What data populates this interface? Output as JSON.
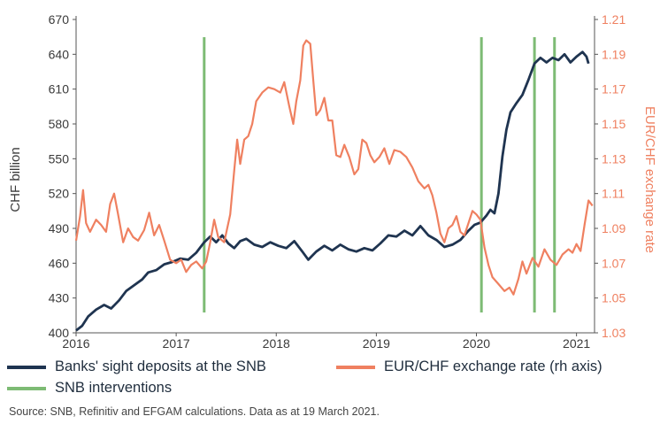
{
  "chart_data": {
    "type": "line",
    "x_ticks": [
      "2016",
      "2017",
      "2018",
      "2019",
      "2020",
      "2021"
    ],
    "left_axis": {
      "label": "CHF billion",
      "ticks": [
        400,
        430,
        460,
        490,
        520,
        550,
        580,
        610,
        640,
        670
      ],
      "ylim": [
        400,
        670
      ]
    },
    "right_axis": {
      "label": "EUR/CHF exchange rate",
      "ticks": [
        "1.03",
        "1.05",
        "1.07",
        "1.09",
        "1.11",
        "1.13",
        "1.15",
        "1.17",
        "1.19",
        "1.21"
      ],
      "ylim": [
        1.03,
        1.21
      ]
    },
    "series": [
      {
        "name": "Banks' sight deposits at the SNB",
        "axis": "left",
        "color": "#1f3450",
        "points": [
          [
            2016.0,
            402
          ],
          [
            2016.06,
            406
          ],
          [
            2016.12,
            414
          ],
          [
            2016.2,
            420
          ],
          [
            2016.28,
            424
          ],
          [
            2016.35,
            421
          ],
          [
            2016.43,
            428
          ],
          [
            2016.5,
            436
          ],
          [
            2016.58,
            441
          ],
          [
            2016.66,
            446
          ],
          [
            2016.72,
            452
          ],
          [
            2016.8,
            454
          ],
          [
            2016.88,
            459
          ],
          [
            2016.96,
            461
          ],
          [
            2017.04,
            464
          ],
          [
            2017.12,
            463
          ],
          [
            2017.2,
            469
          ],
          [
            2017.28,
            478
          ],
          [
            2017.34,
            483
          ],
          [
            2017.4,
            478
          ],
          [
            2017.46,
            484
          ],
          [
            2017.52,
            477
          ],
          [
            2017.58,
            473
          ],
          [
            2017.64,
            479
          ],
          [
            2017.7,
            481
          ],
          [
            2017.78,
            476
          ],
          [
            2017.86,
            474
          ],
          [
            2017.94,
            478
          ],
          [
            2018.02,
            475
          ],
          [
            2018.1,
            473
          ],
          [
            2018.18,
            479
          ],
          [
            2018.26,
            470
          ],
          [
            2018.32,
            463
          ],
          [
            2018.4,
            470
          ],
          [
            2018.48,
            475
          ],
          [
            2018.56,
            471
          ],
          [
            2018.64,
            476
          ],
          [
            2018.72,
            472
          ],
          [
            2018.8,
            470
          ],
          [
            2018.88,
            473
          ],
          [
            2018.96,
            471
          ],
          [
            2019.04,
            477
          ],
          [
            2019.12,
            484
          ],
          [
            2019.2,
            483
          ],
          [
            2019.28,
            488
          ],
          [
            2019.36,
            484
          ],
          [
            2019.44,
            492
          ],
          [
            2019.52,
            484
          ],
          [
            2019.6,
            480
          ],
          [
            2019.68,
            474
          ],
          [
            2019.76,
            476
          ],
          [
            2019.84,
            480
          ],
          [
            2019.92,
            488
          ],
          [
            2019.98,
            493
          ],
          [
            2020.04,
            495
          ],
          [
            2020.1,
            501
          ],
          [
            2020.14,
            506
          ],
          [
            2020.18,
            503
          ],
          [
            2020.22,
            520
          ],
          [
            2020.26,
            552
          ],
          [
            2020.3,
            575
          ],
          [
            2020.34,
            590
          ],
          [
            2020.4,
            598
          ],
          [
            2020.46,
            605
          ],
          [
            2020.52,
            618
          ],
          [
            2020.58,
            632
          ],
          [
            2020.64,
            637
          ],
          [
            2020.7,
            633
          ],
          [
            2020.76,
            637
          ],
          [
            2020.82,
            635
          ],
          [
            2020.88,
            640
          ],
          [
            2020.94,
            633
          ],
          [
            2021.0,
            638
          ],
          [
            2021.06,
            642
          ],
          [
            2021.1,
            638
          ],
          [
            2021.12,
            632
          ]
        ]
      },
      {
        "name": "EUR/CHF exchange rate (rh axis)",
        "axis": "right",
        "color": "#ef8060",
        "points": [
          [
            2016.0,
            1.083
          ],
          [
            2016.04,
            1.097
          ],
          [
            2016.07,
            1.112
          ],
          [
            2016.1,
            1.093
          ],
          [
            2016.14,
            1.088
          ],
          [
            2016.2,
            1.095
          ],
          [
            2016.25,
            1.092
          ],
          [
            2016.3,
            1.088
          ],
          [
            2016.34,
            1.104
          ],
          [
            2016.38,
            1.11
          ],
          [
            2016.42,
            1.098
          ],
          [
            2016.47,
            1.082
          ],
          [
            2016.52,
            1.09
          ],
          [
            2016.57,
            1.085
          ],
          [
            2016.62,
            1.083
          ],
          [
            2016.68,
            1.089
          ],
          [
            2016.73,
            1.099
          ],
          [
            2016.78,
            1.086
          ],
          [
            2016.83,
            1.092
          ],
          [
            2016.88,
            1.083
          ],
          [
            2016.94,
            1.072
          ],
          [
            2017.0,
            1.07
          ],
          [
            2017.05,
            1.072
          ],
          [
            2017.1,
            1.065
          ],
          [
            2017.15,
            1.069
          ],
          [
            2017.2,
            1.071
          ],
          [
            2017.26,
            1.067
          ],
          [
            2017.3,
            1.071
          ],
          [
            2017.34,
            1.082
          ],
          [
            2017.38,
            1.095
          ],
          [
            2017.42,
            1.085
          ],
          [
            2017.48,
            1.082
          ],
          [
            2017.54,
            1.098
          ],
          [
            2017.58,
            1.123
          ],
          [
            2017.61,
            1.141
          ],
          [
            2017.64,
            1.127
          ],
          [
            2017.68,
            1.141
          ],
          [
            2017.72,
            1.143
          ],
          [
            2017.76,
            1.15
          ],
          [
            2017.8,
            1.163
          ],
          [
            2017.86,
            1.168
          ],
          [
            2017.92,
            1.171
          ],
          [
            2017.98,
            1.17
          ],
          [
            2018.04,
            1.168
          ],
          [
            2018.08,
            1.174
          ],
          [
            2018.13,
            1.16
          ],
          [
            2018.17,
            1.15
          ],
          [
            2018.2,
            1.163
          ],
          [
            2018.24,
            1.175
          ],
          [
            2018.27,
            1.195
          ],
          [
            2018.3,
            1.198
          ],
          [
            2018.34,
            1.196
          ],
          [
            2018.37,
            1.175
          ],
          [
            2018.4,
            1.155
          ],
          [
            2018.44,
            1.158
          ],
          [
            2018.48,
            1.165
          ],
          [
            2018.52,
            1.152
          ],
          [
            2018.56,
            1.152
          ],
          [
            2018.6,
            1.132
          ],
          [
            2018.64,
            1.131
          ],
          [
            2018.68,
            1.138
          ],
          [
            2018.73,
            1.131
          ],
          [
            2018.78,
            1.121
          ],
          [
            2018.82,
            1.124
          ],
          [
            2018.86,
            1.141
          ],
          [
            2018.9,
            1.139
          ],
          [
            2018.94,
            1.132
          ],
          [
            2018.98,
            1.128
          ],
          [
            2019.03,
            1.131
          ],
          [
            2019.08,
            1.136
          ],
          [
            2019.13,
            1.127
          ],
          [
            2019.18,
            1.135
          ],
          [
            2019.24,
            1.134
          ],
          [
            2019.3,
            1.131
          ],
          [
            2019.36,
            1.125
          ],
          [
            2019.42,
            1.117
          ],
          [
            2019.48,
            1.113
          ],
          [
            2019.52,
            1.115
          ],
          [
            2019.56,
            1.109
          ],
          [
            2019.6,
            1.099
          ],
          [
            2019.64,
            1.087
          ],
          [
            2019.68,
            1.082
          ],
          [
            2019.72,
            1.09
          ],
          [
            2019.76,
            1.092
          ],
          [
            2019.8,
            1.097
          ],
          [
            2019.84,
            1.088
          ],
          [
            2019.88,
            1.086
          ],
          [
            2019.92,
            1.093
          ],
          [
            2019.96,
            1.1
          ],
          [
            2020.0,
            1.098
          ],
          [
            2020.04,
            1.095
          ],
          [
            2020.08,
            1.079
          ],
          [
            2020.12,
            1.069
          ],
          [
            2020.16,
            1.062
          ],
          [
            2020.22,
            1.058
          ],
          [
            2020.28,
            1.054
          ],
          [
            2020.33,
            1.056
          ],
          [
            2020.37,
            1.052
          ],
          [
            2020.42,
            1.061
          ],
          [
            2020.46,
            1.071
          ],
          [
            2020.5,
            1.064
          ],
          [
            2020.56,
            1.073
          ],
          [
            2020.62,
            1.068
          ],
          [
            2020.68,
            1.078
          ],
          [
            2020.74,
            1.072
          ],
          [
            2020.8,
            1.069
          ],
          [
            2020.86,
            1.075
          ],
          [
            2020.92,
            1.078
          ],
          [
            2020.96,
            1.076
          ],
          [
            2021.0,
            1.081
          ],
          [
            2021.04,
            1.077
          ],
          [
            2021.08,
            1.092
          ],
          [
            2021.12,
            1.106
          ],
          [
            2021.16,
            1.103
          ]
        ]
      },
      {
        "name": "SNB interventions",
        "axis": "left",
        "color": "#7dbb74",
        "type": "vertical-lines",
        "x": [
          2017.28,
          2020.05,
          2020.58,
          2020.78
        ]
      }
    ],
    "legend": [
      {
        "label": "Banks' sight deposits at the SNB",
        "color": "#1f3450"
      },
      {
        "label": "EUR/CHF exchange rate (rh axis)",
        "color": "#ef8060"
      },
      {
        "label": "SNB interventions",
        "color": "#7dbb74"
      }
    ],
    "legend_position": "bottom",
    "grid": false,
    "source": "Source: SNB, Refinitiv and EFGAM calculations. Data as at 19 March 2021."
  }
}
